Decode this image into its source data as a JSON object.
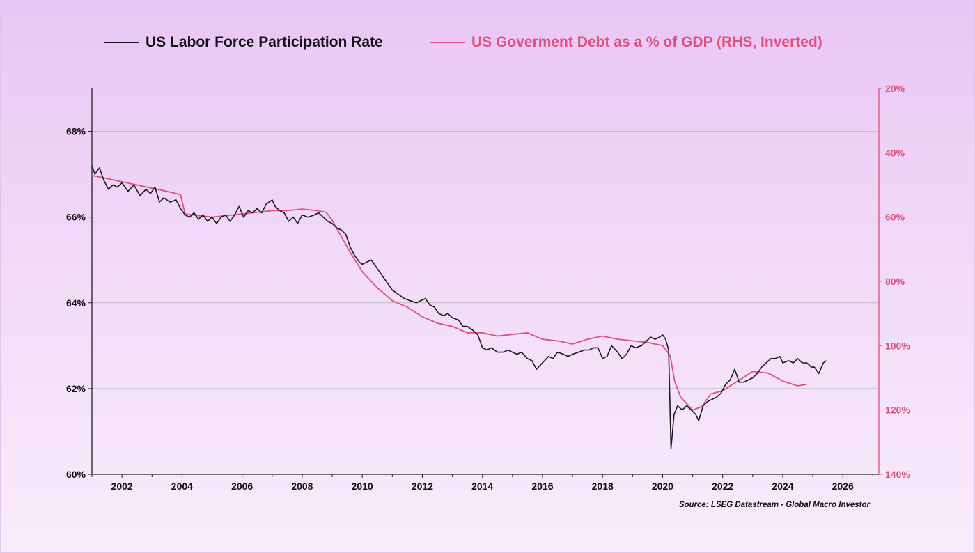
{
  "colors": {
    "lfpr": "#1a1a1a",
    "debt": "#e0507a",
    "grid": "#bdbdbd"
  },
  "chart_data": {
    "type": "line",
    "legend_position": "top",
    "grid": true,
    "series": [
      {
        "name": "US Labor Force Participation Rate",
        "axis": "left",
        "points": [
          [
            2001.0,
            67.2
          ],
          [
            2001.1,
            67.0
          ],
          [
            2001.25,
            67.15
          ],
          [
            2001.4,
            66.85
          ],
          [
            2001.55,
            66.65
          ],
          [
            2001.7,
            66.75
          ],
          [
            2001.85,
            66.7
          ],
          [
            2002.0,
            66.8
          ],
          [
            2002.2,
            66.6
          ],
          [
            2002.4,
            66.75
          ],
          [
            2002.6,
            66.5
          ],
          [
            2002.8,
            66.65
          ],
          [
            2002.95,
            66.55
          ],
          [
            2003.1,
            66.7
          ],
          [
            2003.25,
            66.35
          ],
          [
            2003.4,
            66.45
          ],
          [
            2003.6,
            66.35
          ],
          [
            2003.8,
            66.4
          ],
          [
            2003.95,
            66.2
          ],
          [
            2004.1,
            66.05
          ],
          [
            2004.25,
            66.0
          ],
          [
            2004.4,
            66.1
          ],
          [
            2004.55,
            65.95
          ],
          [
            2004.7,
            66.05
          ],
          [
            2004.85,
            65.9
          ],
          [
            2005.0,
            66.0
          ],
          [
            2005.15,
            65.85
          ],
          [
            2005.3,
            66.0
          ],
          [
            2005.45,
            66.05
          ],
          [
            2005.6,
            65.9
          ],
          [
            2005.75,
            66.05
          ],
          [
            2005.9,
            66.25
          ],
          [
            2006.05,
            66.0
          ],
          [
            2006.2,
            66.15
          ],
          [
            2006.35,
            66.1
          ],
          [
            2006.5,
            66.2
          ],
          [
            2006.65,
            66.1
          ],
          [
            2006.8,
            66.3
          ],
          [
            2007.0,
            66.4
          ],
          [
            2007.1,
            66.25
          ],
          [
            2007.25,
            66.15
          ],
          [
            2007.4,
            66.1
          ],
          [
            2007.55,
            65.9
          ],
          [
            2007.7,
            66.0
          ],
          [
            2007.85,
            65.85
          ],
          [
            2008.0,
            66.05
          ],
          [
            2008.2,
            66.0
          ],
          [
            2008.4,
            66.05
          ],
          [
            2008.55,
            66.1
          ],
          [
            2008.7,
            66.0
          ],
          [
            2008.85,
            65.9
          ],
          [
            2009.0,
            65.85
          ],
          [
            2009.15,
            65.75
          ],
          [
            2009.3,
            65.7
          ],
          [
            2009.45,
            65.6
          ],
          [
            2009.6,
            65.3
          ],
          [
            2009.75,
            65.1
          ],
          [
            2009.9,
            64.95
          ],
          [
            2010.0,
            64.9
          ],
          [
            2010.15,
            64.95
          ],
          [
            2010.3,
            65.0
          ],
          [
            2010.45,
            64.85
          ],
          [
            2010.6,
            64.7
          ],
          [
            2010.75,
            64.55
          ],
          [
            2010.9,
            64.4
          ],
          [
            2011.0,
            64.3
          ],
          [
            2011.2,
            64.2
          ],
          [
            2011.4,
            64.1
          ],
          [
            2011.6,
            64.05
          ],
          [
            2011.8,
            64.0
          ],
          [
            2011.95,
            64.05
          ],
          [
            2012.1,
            64.1
          ],
          [
            2012.25,
            63.95
          ],
          [
            2012.4,
            63.9
          ],
          [
            2012.55,
            63.75
          ],
          [
            2012.7,
            63.7
          ],
          [
            2012.85,
            63.75
          ],
          [
            2013.0,
            63.65
          ],
          [
            2013.2,
            63.6
          ],
          [
            2013.35,
            63.45
          ],
          [
            2013.5,
            63.45
          ],
          [
            2013.7,
            63.35
          ],
          [
            2013.85,
            63.25
          ],
          [
            2014.0,
            62.95
          ],
          [
            2014.15,
            62.9
          ],
          [
            2014.3,
            62.95
          ],
          [
            2014.5,
            62.85
          ],
          [
            2014.7,
            62.85
          ],
          [
            2014.85,
            62.9
          ],
          [
            2015.0,
            62.85
          ],
          [
            2015.15,
            62.8
          ],
          [
            2015.3,
            62.85
          ],
          [
            2015.5,
            62.7
          ],
          [
            2015.65,
            62.65
          ],
          [
            2015.8,
            62.45
          ],
          [
            2016.0,
            62.6
          ],
          [
            2016.2,
            62.75
          ],
          [
            2016.35,
            62.7
          ],
          [
            2016.5,
            62.85
          ],
          [
            2016.7,
            62.8
          ],
          [
            2016.85,
            62.75
          ],
          [
            2017.0,
            62.8
          ],
          [
            2017.2,
            62.85
          ],
          [
            2017.4,
            62.9
          ],
          [
            2017.55,
            62.9
          ],
          [
            2017.7,
            62.95
          ],
          [
            2017.85,
            62.95
          ],
          [
            2018.0,
            62.7
          ],
          [
            2018.15,
            62.75
          ],
          [
            2018.3,
            63.0
          ],
          [
            2018.5,
            62.85
          ],
          [
            2018.65,
            62.7
          ],
          [
            2018.8,
            62.8
          ],
          [
            2018.95,
            63.0
          ],
          [
            2019.1,
            62.95
          ],
          [
            2019.3,
            63.0
          ],
          [
            2019.45,
            63.1
          ],
          [
            2019.6,
            63.2
          ],
          [
            2019.75,
            63.15
          ],
          [
            2019.9,
            63.2
          ],
          [
            2020.0,
            63.25
          ],
          [
            2020.1,
            63.15
          ],
          [
            2020.2,
            62.9
          ],
          [
            2020.28,
            60.6
          ],
          [
            2020.38,
            61.4
          ],
          [
            2020.5,
            61.6
          ],
          [
            2020.65,
            61.5
          ],
          [
            2020.8,
            61.6
          ],
          [
            2020.95,
            61.5
          ],
          [
            2021.1,
            61.4
          ],
          [
            2021.2,
            61.25
          ],
          [
            2021.35,
            61.6
          ],
          [
            2021.5,
            61.7
          ],
          [
            2021.65,
            61.75
          ],
          [
            2021.8,
            61.8
          ],
          [
            2021.95,
            61.9
          ],
          [
            2022.1,
            62.1
          ],
          [
            2022.25,
            62.2
          ],
          [
            2022.4,
            62.45
          ],
          [
            2022.55,
            62.15
          ],
          [
            2022.7,
            62.15
          ],
          [
            2022.85,
            62.2
          ],
          [
            2023.0,
            62.25
          ],
          [
            2023.15,
            62.35
          ],
          [
            2023.3,
            62.5
          ],
          [
            2023.45,
            62.6
          ],
          [
            2023.6,
            62.7
          ],
          [
            2023.75,
            62.7
          ],
          [
            2023.9,
            62.75
          ],
          [
            2024.0,
            62.6
          ],
          [
            2024.2,
            62.65
          ],
          [
            2024.35,
            62.6
          ],
          [
            2024.5,
            62.7
          ],
          [
            2024.65,
            62.6
          ],
          [
            2024.8,
            62.6
          ],
          [
            2024.95,
            62.5
          ],
          [
            2025.05,
            62.5
          ],
          [
            2025.2,
            62.35
          ],
          [
            2025.35,
            62.6
          ],
          [
            2025.45,
            62.65
          ]
        ]
      },
      {
        "name": "US Goverment Debt as a % of GDP (RHS, Inverted)",
        "axis": "right",
        "points": [
          [
            2001.0,
            47
          ],
          [
            2001.5,
            48
          ],
          [
            2002.0,
            49
          ],
          [
            2002.5,
            50
          ],
          [
            2003.0,
            51
          ],
          [
            2003.5,
            52
          ],
          [
            2003.95,
            53
          ],
          [
            2004.1,
            59
          ],
          [
            2004.5,
            59.5
          ],
          [
            2005.0,
            60
          ],
          [
            2005.5,
            59.5
          ],
          [
            2006.0,
            59
          ],
          [
            2006.5,
            58.5
          ],
          [
            2007.0,
            58
          ],
          [
            2007.5,
            58
          ],
          [
            2008.0,
            57.5
          ],
          [
            2008.5,
            58
          ],
          [
            2008.8,
            58.5
          ],
          [
            2009.0,
            61
          ],
          [
            2009.3,
            66
          ],
          [
            2009.6,
            71
          ],
          [
            2010.0,
            77
          ],
          [
            2010.5,
            82
          ],
          [
            2011.0,
            86
          ],
          [
            2011.5,
            88
          ],
          [
            2012.0,
            91
          ],
          [
            2012.5,
            93
          ],
          [
            2013.0,
            94
          ],
          [
            2013.5,
            96
          ],
          [
            2014.0,
            96
          ],
          [
            2014.5,
            97
          ],
          [
            2015.0,
            96.5
          ],
          [
            2015.5,
            96
          ],
          [
            2016.0,
            98
          ],
          [
            2016.5,
            98.5
          ],
          [
            2017.0,
            99.5
          ],
          [
            2017.5,
            98
          ],
          [
            2018.0,
            97
          ],
          [
            2018.5,
            98
          ],
          [
            2019.0,
            98.5
          ],
          [
            2019.5,
            99
          ],
          [
            2020.0,
            100
          ],
          [
            2020.25,
            103
          ],
          [
            2020.4,
            111
          ],
          [
            2020.6,
            116
          ],
          [
            2021.0,
            120
          ],
          [
            2021.3,
            119
          ],
          [
            2021.6,
            115
          ],
          [
            2022.0,
            114
          ],
          [
            2022.5,
            111
          ],
          [
            2023.0,
            108
          ],
          [
            2023.5,
            108.5
          ],
          [
            2024.0,
            111
          ],
          [
            2024.5,
            112.5
          ],
          [
            2024.8,
            112
          ]
        ]
      }
    ],
    "x_ticks": [
      2002,
      2004,
      2006,
      2008,
      2010,
      2012,
      2014,
      2016,
      2018,
      2020,
      2022,
      2024,
      2026
    ],
    "xlim": [
      2001.0,
      2027.2
    ],
    "left_axis": {
      "ylim": [
        60,
        69
      ],
      "ticks": [
        60,
        62,
        64,
        66,
        68
      ],
      "tick_suffix": "%"
    },
    "right_axis": {
      "ylim": [
        20,
        140
      ],
      "inverted": true,
      "ticks": [
        20,
        40,
        60,
        80,
        100,
        120,
        140
      ],
      "tick_suffix": "%"
    },
    "annotation": "Source: LSEG Datastream - Global Macro Investor"
  }
}
